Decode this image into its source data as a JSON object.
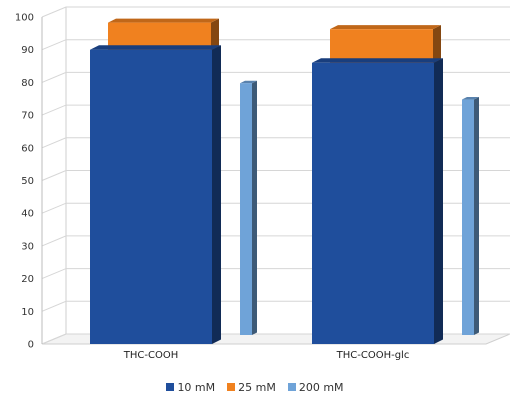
{
  "chart_data": {
    "type": "bar",
    "categories": [
      "THC-COOH",
      "THC-COOH-glc"
    ],
    "series": [
      {
        "name": "10 mM",
        "values": [
          90,
          86
        ],
        "color": "#1F4E9C"
      },
      {
        "name": "25 mM",
        "values": [
          94,
          92
        ],
        "color": "#F0811F"
      },
      {
        "name": "200 mM",
        "values": [
          77,
          72
        ],
        "color": "#6FA3D8"
      }
    ],
    "ylim": [
      0,
      100
    ],
    "yticks": [
      0,
      10,
      20,
      30,
      40,
      50,
      60,
      70,
      80,
      90,
      100
    ],
    "grid": true,
    "legend_position": "bottom",
    "title": "",
    "xlabel": "",
    "ylabel": ""
  }
}
